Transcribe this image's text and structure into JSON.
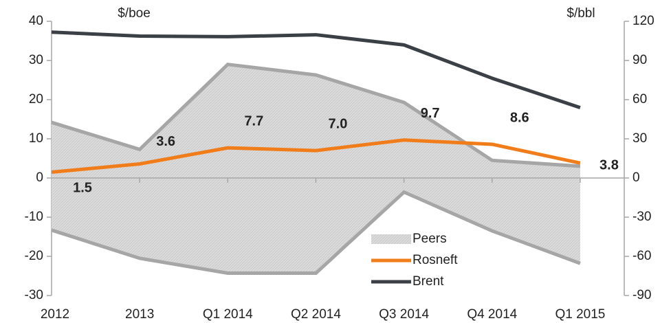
{
  "chart_data": {
    "type": "line",
    "y_label": "$/boe",
    "y2_label": "$/bbl",
    "categories": [
      "2012",
      "2013",
      "Q1 2014",
      "Q2 2014",
      "Q3 2014",
      "Q4 2014",
      "Q1 2015"
    ],
    "series": [
      {
        "name": "Peers",
        "kind": "band",
        "color": "#a6a6a6",
        "fill": "#d9d9d9",
        "high": [
          14.2,
          7.3,
          29.0,
          26.3,
          19.3,
          4.5,
          3.0
        ],
        "low": [
          -13.3,
          -20.5,
          -24.3,
          -24.3,
          -3.6,
          -13.5,
          -21.8
        ]
      },
      {
        "name": "Rosneft",
        "color": "#f07d1a",
        "values": [
          1.5,
          3.6,
          7.7,
          7.0,
          9.7,
          8.6,
          3.8
        ],
        "value_labels": [
          "1.5",
          "3.6",
          "7.7",
          "7.0",
          "9.7",
          "8.6",
          "3.8"
        ]
      },
      {
        "name": "Brent",
        "color": "#3a4045",
        "axis": "y2",
        "values": [
          111.7,
          108.7,
          108.2,
          109.7,
          101.9,
          76.4,
          53.9
        ]
      }
    ],
    "ylim": [
      -30,
      40
    ],
    "yticks": [
      -30,
      -20,
      -10,
      0,
      10,
      20,
      30,
      40
    ],
    "y2lim": [
      -90,
      120
    ],
    "y2ticks": [
      -90,
      -60,
      -30,
      0,
      30,
      60,
      90,
      120
    ],
    "grid": false,
    "legend": "lower center"
  }
}
